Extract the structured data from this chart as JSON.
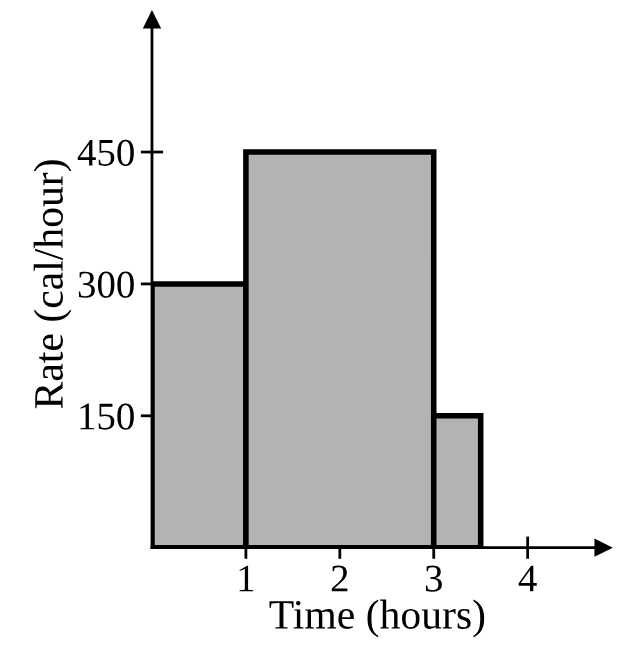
{
  "chart_data": {
    "type": "histogram",
    "xlabel": "Time (hours)",
    "ylabel": "Rate (cal/hour)",
    "bins": [
      0,
      1,
      3,
      3.5
    ],
    "values": [
      300,
      450,
      150
    ],
    "color": "#b3b3b3",
    "xlim": [
      0,
      4.8
    ],
    "ylim": [
      0,
      600
    ],
    "xticks": [
      1,
      2,
      3,
      4
    ],
    "yticks": [
      150,
      300,
      450
    ],
    "grid": false,
    "legend": false
  }
}
